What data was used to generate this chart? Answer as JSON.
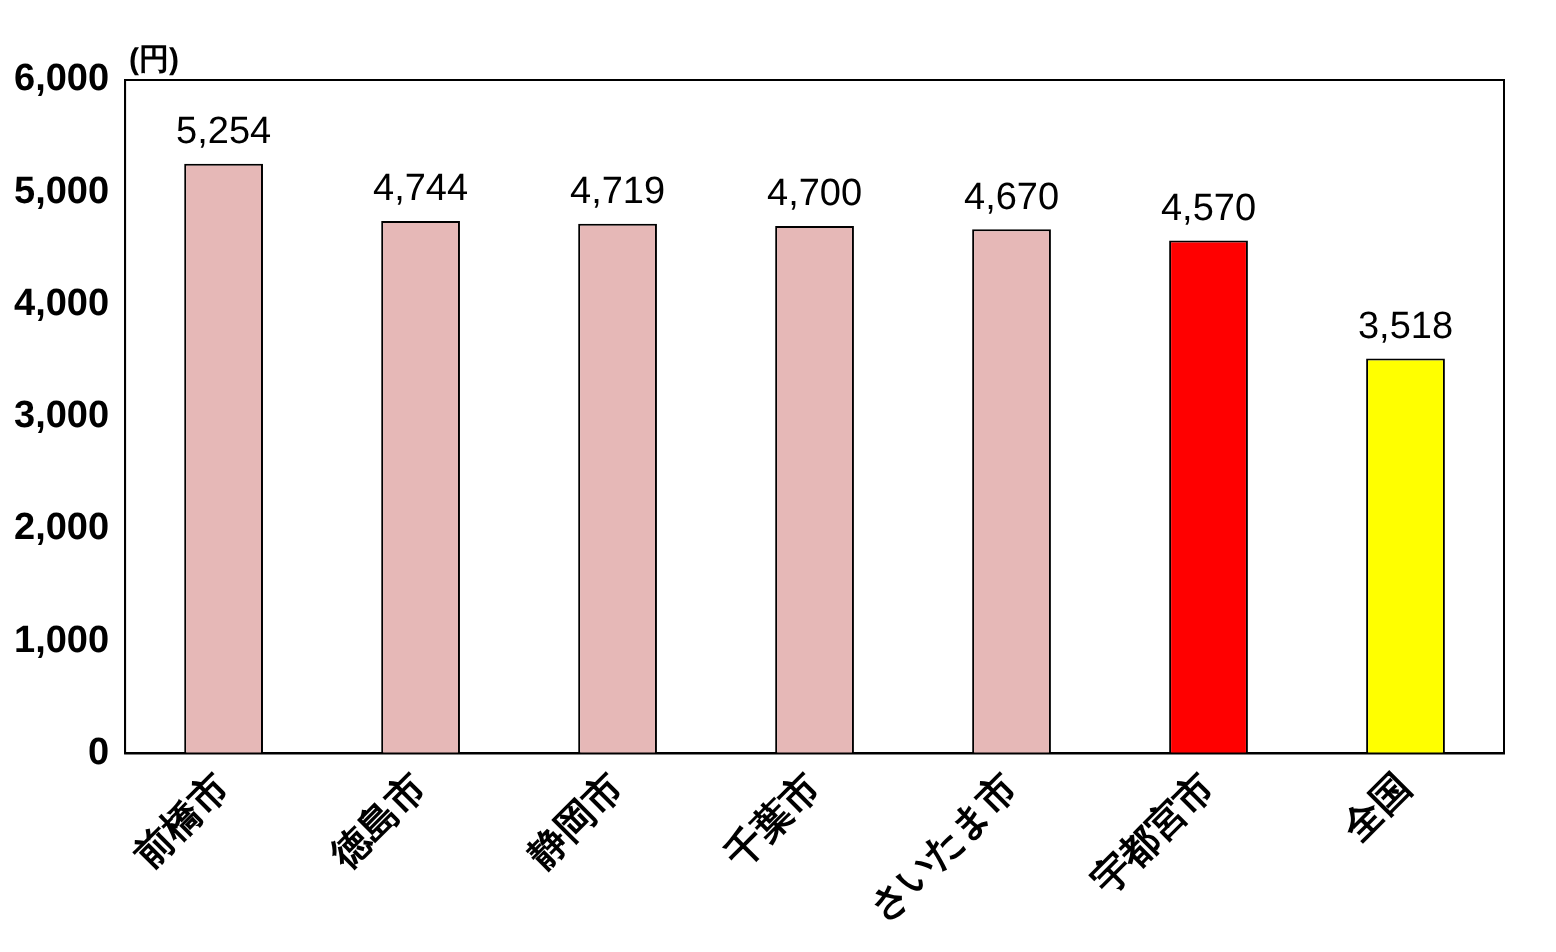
{
  "chart_data": {
    "type": "bar",
    "ylabel": "(円)",
    "categories": [
      "前橋市",
      "徳島市",
      "静岡市",
      "千葉市",
      "さいたま市",
      "宇都宮市",
      "全国"
    ],
    "values": [
      5254,
      4744,
      4719,
      4700,
      4670,
      4570,
      3518
    ],
    "colors": [
      "#e6b8b7",
      "#e6b8b7",
      "#e6b8b7",
      "#e6b8b7",
      "#e6b8b7",
      "#ff0000",
      "#ffff00"
    ],
    "value_labels": [
      "5,254",
      "4,744",
      "4,719",
      "4,700",
      "4,670",
      "4,570",
      "3,518"
    ],
    "ylim": [
      0,
      6000
    ],
    "yticks": [
      0,
      {
        "value": 1000,
        "label": "1,000"
      },
      {
        "value": 2000,
        "label": "2,000"
      },
      {
        "value": 3000,
        "label": "3,000"
      },
      {
        "value": 4000,
        "label": "4,000"
      },
      {
        "value": 5000,
        "label": "5,000"
      },
      {
        "value": 6000,
        "label": "6,000"
      }
    ],
    "grid": false,
    "legend": false
  }
}
